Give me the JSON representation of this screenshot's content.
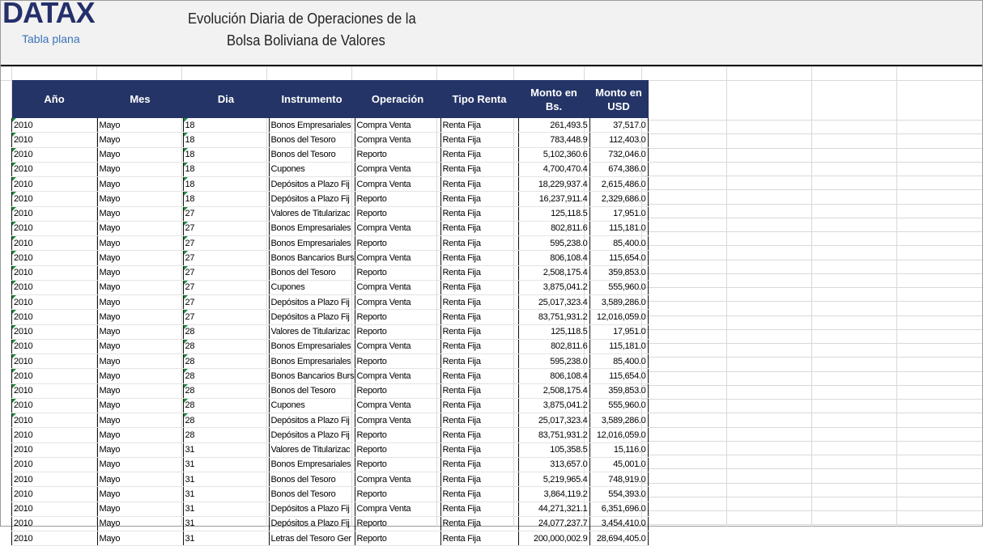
{
  "header": {
    "logo": "DATAX",
    "subtitle": "Tabla plana",
    "title_line1": "Evolución Diaria de Operaciones de la",
    "title_line2": "Bolsa Boliviana de Valores"
  },
  "table": {
    "columns": [
      "Año",
      "Mes",
      "Dia",
      "Instrumento",
      "Operación",
      "Tipo Renta",
      "Monto en Bs.",
      "Monto en USD"
    ],
    "rows": [
      [
        "2010",
        "Mayo",
        "18",
        "Bonos Empresariales",
        "Compra Venta",
        "Renta Fija",
        "261,493.5",
        "37,517.0"
      ],
      [
        "2010",
        "Mayo",
        "18",
        "Bonos del Tesoro",
        "Compra Venta",
        "Renta Fija",
        "783,448.9",
        "112,403.0"
      ],
      [
        "2010",
        "Mayo",
        "18",
        "Bonos del Tesoro",
        "Reporto",
        "Renta Fija",
        "5,102,360.6",
        "732,046.0"
      ],
      [
        "2010",
        "Mayo",
        "18",
        "Cupones",
        "Compra Venta",
        "Renta Fija",
        "4,700,470.4",
        "674,386.0"
      ],
      [
        "2010",
        "Mayo",
        "18",
        "Depósitos a Plazo Fij",
        "Compra Venta",
        "Renta Fija",
        "18,229,937.4",
        "2,615,486.0"
      ],
      [
        "2010",
        "Mayo",
        "18",
        "Depósitos a Plazo Fij",
        "Reporto",
        "Renta Fija",
        "16,237,911.4",
        "2,329,686.0"
      ],
      [
        "2010",
        "Mayo",
        "27",
        "Valores de Titularizac",
        "Reporto",
        "Renta Fija",
        "125,118.5",
        "17,951.0"
      ],
      [
        "2010",
        "Mayo",
        "27",
        "Bonos Empresariales",
        "Compra Venta",
        "Renta Fija",
        "802,811.6",
        "115,181.0"
      ],
      [
        "2010",
        "Mayo",
        "27",
        "Bonos Empresariales",
        "Reporto",
        "Renta Fija",
        "595,238.0",
        "85,400.0"
      ],
      [
        "2010",
        "Mayo",
        "27",
        "Bonos Bancarios Burs",
        "Compra Venta",
        "Renta Fija",
        "806,108.4",
        "115,654.0"
      ],
      [
        "2010",
        "Mayo",
        "27",
        "Bonos del Tesoro",
        "Reporto",
        "Renta Fija",
        "2,508,175.4",
        "359,853.0"
      ],
      [
        "2010",
        "Mayo",
        "27",
        "Cupones",
        "Compra Venta",
        "Renta Fija",
        "3,875,041.2",
        "555,960.0"
      ],
      [
        "2010",
        "Mayo",
        "27",
        "Depósitos a Plazo Fij",
        "Compra Venta",
        "Renta Fija",
        "25,017,323.4",
        "3,589,286.0"
      ],
      [
        "2010",
        "Mayo",
        "27",
        "Depósitos a Plazo Fij",
        "Reporto",
        "Renta Fija",
        "83,751,931.2",
        "12,016,059.0"
      ],
      [
        "2010",
        "Mayo",
        "28",
        "Valores de Titularizac",
        "Reporto",
        "Renta Fija",
        "125,118.5",
        "17,951.0"
      ],
      [
        "2010",
        "Mayo",
        "28",
        "Bonos Empresariales",
        "Compra Venta",
        "Renta Fija",
        "802,811.6",
        "115,181.0"
      ],
      [
        "2010",
        "Mayo",
        "28",
        "Bonos Empresariales",
        "Reporto",
        "Renta Fija",
        "595,238.0",
        "85,400.0"
      ],
      [
        "2010",
        "Mayo",
        "28",
        "Bonos Bancarios Burs",
        "Compra Venta",
        "Renta Fija",
        "806,108.4",
        "115,654.0"
      ],
      [
        "2010",
        "Mayo",
        "28",
        "Bonos del Tesoro",
        "Reporto",
        "Renta Fija",
        "2,508,175.4",
        "359,853.0"
      ],
      [
        "2010",
        "Mayo",
        "28",
        "Cupones",
        "Compra Venta",
        "Renta Fija",
        "3,875,041.2",
        "555,960.0"
      ],
      [
        "2010",
        "Mayo",
        "28",
        "Depósitos a Plazo Fij",
        "Compra Venta",
        "Renta Fija",
        "25,017,323.4",
        "3,589,286.0"
      ],
      [
        "2010",
        "Mayo",
        "28",
        "Depósitos a Plazo Fij",
        "Reporto",
        "Renta Fija",
        "83,751,931.2",
        "12,016,059.0"
      ],
      [
        "2010",
        "Mayo",
        "31",
        "Valores de Titularizac",
        "Reporto",
        "Renta Fija",
        "105,358.5",
        "15,116.0"
      ],
      [
        "2010",
        "Mayo",
        "31",
        "Bonos Empresariales",
        "Reporto",
        "Renta Fija",
        "313,657.0",
        "45,001.0"
      ],
      [
        "2010",
        "Mayo",
        "31",
        "Bonos del Tesoro",
        "Compra Venta",
        "Renta Fija",
        "5,219,965.4",
        "748,919.0"
      ],
      [
        "2010",
        "Mayo",
        "31",
        "Bonos del Tesoro",
        "Reporto",
        "Renta Fija",
        "3,864,119.2",
        "554,393.0"
      ],
      [
        "2010",
        "Mayo",
        "31",
        "Depósitos a Plazo Fij",
        "Compra Venta",
        "Renta Fija",
        "44,271,321.1",
        "6,351,696.0"
      ],
      [
        "2010",
        "Mayo",
        "31",
        "Depósitos a Plazo Fij",
        "Reporto",
        "Renta Fija",
        "24,077,237.7",
        "3,454,410.0"
      ],
      [
        "2010",
        "Mayo",
        "31",
        "Letras del Tesoro Ger",
        "Reporto",
        "Renta Fija",
        "200,000,002.9",
        "28,694,405.0"
      ]
    ]
  }
}
